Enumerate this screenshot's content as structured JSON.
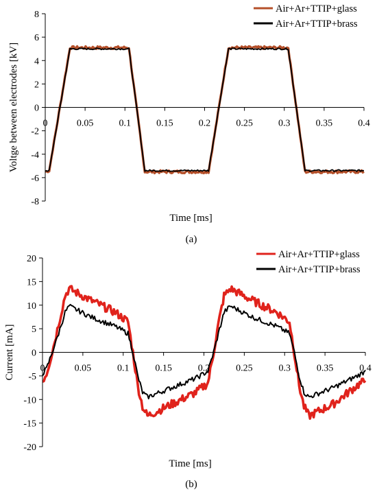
{
  "panels": [
    {
      "label": "(a)"
    },
    {
      "label": "(b)"
    }
  ],
  "chart_data": [
    {
      "type": "line",
      "xlabel": "Time [ms]",
      "ylabel": "Voltge between electrodes [kV]",
      "xlim": [
        0,
        0.4
      ],
      "ylim": [
        -8,
        8
      ],
      "xticks": [
        0,
        0.05,
        0.1,
        0.15,
        0.2,
        0.25,
        0.3,
        0.35,
        0.4
      ],
      "xtick_labels": [
        "0",
        "0.05",
        "0.1",
        "0.15",
        "0.2",
        "0.25",
        "0.3",
        "0.35",
        "0.4"
      ],
      "yticks": [
        -8,
        -6,
        -4,
        -2,
        0,
        2,
        4,
        6,
        8
      ],
      "ytick_labels": [
        "-8",
        "-6",
        "-4",
        "-2",
        "0",
        "2",
        "4",
        "6",
        "8"
      ],
      "grid": false,
      "legend_position": "top-right",
      "series": [
        {
          "name": "Air+Ar+TTIP+glass",
          "color": "#b5502a",
          "x": [
            0,
            0.005,
            0.031,
            0.105,
            0.125,
            0.205,
            0.23,
            0.305,
            0.326,
            0.4
          ],
          "y": [
            -5.5,
            -5.4,
            5.1,
            5.1,
            -5.5,
            -5.5,
            5.1,
            5.1,
            -5.5,
            -5.5
          ]
        },
        {
          "name": "Air+Ar+TTIP+brass",
          "color": "#000000",
          "x": [
            0,
            0.005,
            0.031,
            0.105,
            0.125,
            0.205,
            0.23,
            0.305,
            0.326,
            0.4
          ],
          "y": [
            -5.4,
            -5.4,
            5.0,
            5.0,
            -5.4,
            -5.4,
            5.0,
            5.0,
            -5.4,
            -5.4
          ]
        }
      ]
    },
    {
      "type": "line",
      "xlabel": "Time [ms]",
      "ylabel": "Current [mA]",
      "xlim": [
        0,
        0.4
      ],
      "ylim": [
        -20,
        20
      ],
      "xticks": [
        0,
        0.05,
        0.1,
        0.15,
        0.2,
        0.25,
        0.3,
        0.35,
        0.4
      ],
      "xtick_labels": [
        "0",
        "0.05",
        "0.1",
        "0.15",
        "0.2",
        "0.25",
        "0.3",
        "0.35",
        "0.4"
      ],
      "yticks": [
        -20,
        -15,
        -10,
        -5,
        0,
        5,
        10,
        15,
        20
      ],
      "ytick_labels": [
        "-20",
        "-15",
        "-10",
        "-5",
        "0",
        "5",
        "10",
        "15",
        "20"
      ],
      "grid": false,
      "legend_position": "top-right",
      "series": [
        {
          "name": "Air+Ar+TTIP+glass",
          "color": "#e0231c",
          "x": [
            0,
            0.005,
            0.012,
            0.02,
            0.028,
            0.033,
            0.06,
            0.09,
            0.106,
            0.112,
            0.118,
            0.124,
            0.13,
            0.16,
            0.19,
            0.205,
            0.212,
            0.218,
            0.225,
            0.233,
            0.26,
            0.29,
            0.306,
            0.312,
            0.318,
            0.324,
            0.33,
            0.36,
            0.39,
            0.4
          ],
          "y": [
            -6,
            -4.5,
            0,
            6,
            12,
            13.5,
            11,
            8.5,
            6.5,
            0,
            -7,
            -11.5,
            -13.5,
            -11,
            -8.5,
            -6.5,
            0,
            6,
            12,
            13.5,
            11,
            8.5,
            6.5,
            0,
            -7,
            -11.5,
            -13.5,
            -11,
            -7,
            -6
          ]
        },
        {
          "name": "Air+Ar+TTIP+brass",
          "color": "#000000",
          "x": [
            0,
            0.005,
            0.012,
            0.02,
            0.028,
            0.033,
            0.06,
            0.09,
            0.106,
            0.112,
            0.118,
            0.124,
            0.13,
            0.16,
            0.19,
            0.205,
            0.212,
            0.218,
            0.225,
            0.233,
            0.26,
            0.29,
            0.306,
            0.312,
            0.318,
            0.324,
            0.33,
            0.36,
            0.39,
            0.4
          ],
          "y": [
            -4.5,
            -3.5,
            0,
            4,
            8.5,
            9.8,
            7.5,
            5.5,
            4,
            0,
            -5,
            -8.5,
            -9.5,
            -7.5,
            -5.5,
            -4,
            0,
            4,
            8.5,
            9.8,
            7.5,
            5.5,
            4,
            0,
            -5,
            -8.5,
            -9.5,
            -7.5,
            -5,
            -4
          ]
        }
      ]
    }
  ]
}
